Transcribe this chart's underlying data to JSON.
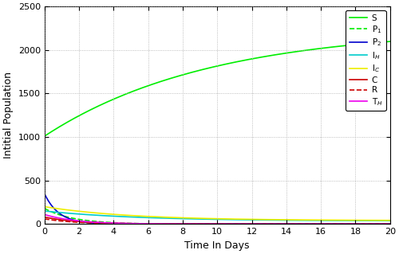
{
  "xlabel": "Time In Days",
  "ylabel": "Intitial Population",
  "xlim": [
    0,
    20
  ],
  "ylim": [
    0,
    2500
  ],
  "xticks": [
    0,
    2,
    4,
    6,
    8,
    10,
    12,
    14,
    16,
    18,
    20
  ],
  "yticks": [
    0,
    500,
    1000,
    1500,
    2000,
    2500
  ],
  "series": [
    {
      "label": "S",
      "color": "#00ee00",
      "linestyle": "-",
      "lw": 1.2
    },
    {
      "label": "P$_1$",
      "color": "#00ee00",
      "linestyle": "--",
      "lw": 1.2
    },
    {
      "label": "P$_2$",
      "color": "#0000cc",
      "linestyle": "-",
      "lw": 1.2
    },
    {
      "label": "I$_H$",
      "color": "#00cccc",
      "linestyle": "-",
      "lw": 1.2
    },
    {
      "label": "I$_C$",
      "color": "#eeee00",
      "linestyle": "-",
      "lw": 1.2
    },
    {
      "label": "C",
      "color": "#cc0000",
      "linestyle": "-",
      "lw": 1.2
    },
    {
      "label": "R",
      "color": "#cc0000",
      "linestyle": "--",
      "lw": 1.2
    },
    {
      "label": "T$_H$",
      "color": "#ee00ee",
      "linestyle": "-",
      "lw": 1.2
    }
  ],
  "S_Sinf": 2250,
  "S_S0": 1010,
  "S_rate": 0.105,
  "P1_S0": 180,
  "P1_rate": 0.6,
  "P1_floor": 0,
  "P2_S0": 350,
  "P2_rate": 1.2,
  "P2_floor": 0,
  "IH_S0": 150,
  "IH_rate": 0.18,
  "IH_floor": 35,
  "IC_S0": 200,
  "IC_rate": 0.2,
  "IC_floor": 40,
  "C_S0": 80,
  "C_rate": 0.5,
  "C_floor": 0,
  "R_S0": 60,
  "R_rate": 0.55,
  "R_floor": 0,
  "TH_S0": 110,
  "TH_rate": 0.55,
  "TH_floor": 0,
  "legend_fontsize": 7.5,
  "tick_fontsize": 8,
  "label_fontsize": 9,
  "bg_color": "#ffffff",
  "grid_color": "#aaaaaa"
}
